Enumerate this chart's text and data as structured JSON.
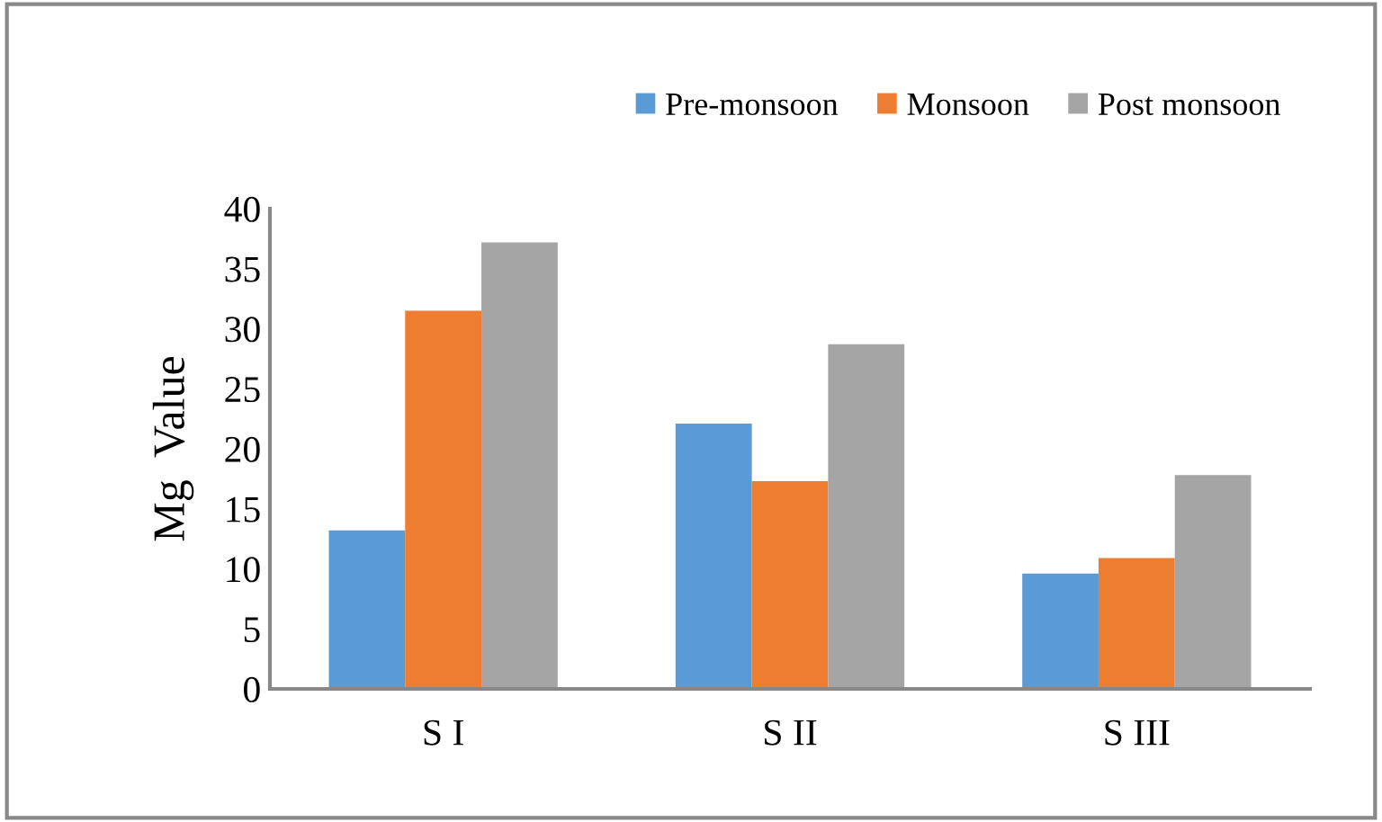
{
  "chart_data": {
    "type": "bar",
    "ylabel": "Mg  Value",
    "categories": [
      "S I",
      "S II",
      "S III"
    ],
    "series": [
      {
        "name": "Pre-monsoon",
        "color": "#5b9bd5",
        "values": [
          13.2,
          22.1,
          9.6
        ]
      },
      {
        "name": "Monsoon",
        "color": "#ed7d31",
        "values": [
          31.5,
          17.3,
          10.9
        ]
      },
      {
        "name": "Post monsoon",
        "color": "#a5a5a5",
        "values": [
          37.2,
          28.7,
          17.8
        ]
      }
    ],
    "ylim": [
      0,
      40
    ],
    "yticks": [
      0,
      5,
      10,
      15,
      20,
      25,
      30,
      35,
      40
    ],
    "grid": false,
    "legend": "top right"
  }
}
